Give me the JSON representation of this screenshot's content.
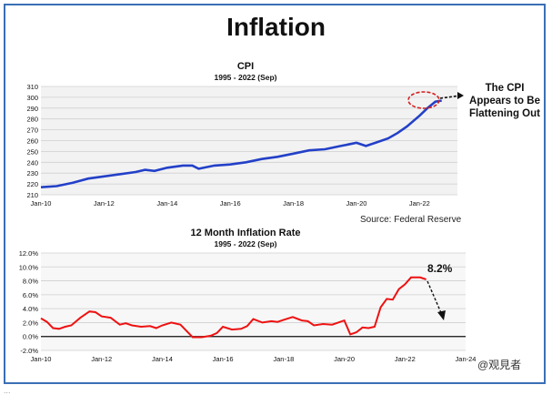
{
  "title": "Inflation",
  "source": "Source: Federal Reserve",
  "watermark": "@观見者",
  "cut_text": "...",
  "colors": {
    "cpi_line": "#2340c8",
    "rate_line": "#ee1111",
    "frame": "#3b6fb5"
  },
  "chart_data": [
    {
      "type": "line",
      "title": "CPI",
      "subtitle": "1995 - 2022 (Sep)",
      "xlim": [
        2010,
        2023.2
      ],
      "ylim": [
        210,
        310
      ],
      "yticks": [
        210,
        220,
        230,
        240,
        250,
        260,
        270,
        280,
        290,
        300,
        310
      ],
      "xticks": [
        {
          "value": 2010,
          "label": "Jan-10"
        },
        {
          "value": 2012,
          "label": "Jan-12"
        },
        {
          "value": 2014,
          "label": "Jan-14"
        },
        {
          "value": 2016,
          "label": "Jan-16"
        },
        {
          "value": 2018,
          "label": "Jan-18"
        },
        {
          "value": 2020,
          "label": "Jan-20"
        },
        {
          "value": 2022,
          "label": "Jan-22"
        }
      ],
      "grid": true,
      "annotation": "The CPI Appears to Be Flattening Out",
      "series": [
        {
          "x": [
            2010,
            2010.5,
            2011,
            2011.5,
            2012,
            2012.5,
            2013,
            2013.3,
            2013.6,
            2014,
            2014.5,
            2014.8,
            2015,
            2015.5,
            2016,
            2016.5,
            2017,
            2017.5,
            2018,
            2018.5,
            2019,
            2019.5,
            2020,
            2020.3,
            2020.6,
            2021,
            2021.3,
            2021.6,
            2022,
            2022.25,
            2022.5,
            2022.7
          ],
          "y": [
            217,
            218,
            221,
            225,
            227,
            229,
            231,
            233,
            232,
            235,
            237,
            237,
            234,
            237,
            238,
            240,
            243,
            245,
            248,
            251,
            252,
            255,
            258,
            255,
            258,
            262,
            267,
            273,
            283,
            290,
            296,
            297
          ]
        }
      ]
    },
    {
      "type": "line",
      "title": "12 Month Inflation Rate",
      "subtitle": "1995 - 2022 (Sep)",
      "xlim": [
        2010,
        2024
      ],
      "ylim": [
        -2,
        12
      ],
      "yticks": [
        -2,
        0,
        2,
        4,
        6,
        8,
        10,
        12
      ],
      "ytick_labels": [
        "-2.0%",
        "0.0%",
        "2.0%",
        "4.0%",
        "6.0%",
        "8.0%",
        "10.0%",
        "12.0%"
      ],
      "xticks": [
        {
          "value": 2010,
          "label": "Jan-10"
        },
        {
          "value": 2012,
          "label": "Jan-12"
        },
        {
          "value": 2014,
          "label": "Jan-14"
        },
        {
          "value": 2016,
          "label": "Jan-16"
        },
        {
          "value": 2018,
          "label": "Jan-18"
        },
        {
          "value": 2020,
          "label": "Jan-20"
        },
        {
          "value": 2022,
          "label": "Jan-22"
        },
        {
          "value": 2024,
          "label": "Jan-24"
        }
      ],
      "grid": true,
      "annotation": "8.2%",
      "series": [
        {
          "x": [
            2010,
            2010.2,
            2010.4,
            2010.6,
            2010.8,
            2011,
            2011.3,
            2011.6,
            2011.8,
            2012,
            2012.3,
            2012.6,
            2012.8,
            2013,
            2013.3,
            2013.6,
            2013.8,
            2014,
            2014.3,
            2014.6,
            2014.8,
            2015,
            2015.3,
            2015.6,
            2015.8,
            2016,
            2016.3,
            2016.6,
            2016.8,
            2017,
            2017.3,
            2017.6,
            2017.8,
            2018,
            2018.3,
            2018.6,
            2018.8,
            2019,
            2019.3,
            2019.6,
            2019.8,
            2020,
            2020.2,
            2020.4,
            2020.6,
            2020.8,
            2021,
            2021.2,
            2021.4,
            2021.6,
            2021.8,
            2022,
            2022.2,
            2022.5,
            2022.7
          ],
          "y": [
            2.6,
            2.1,
            1.2,
            1.1,
            1.4,
            1.6,
            2.7,
            3.6,
            3.5,
            2.9,
            2.7,
            1.7,
            1.9,
            1.6,
            1.4,
            1.5,
            1.2,
            1.6,
            2.0,
            1.7,
            0.8,
            -0.1,
            -0.1,
            0.1,
            0.5,
            1.4,
            1.0,
            1.1,
            1.5,
            2.5,
            2.0,
            2.2,
            2.1,
            2.4,
            2.8,
            2.3,
            2.2,
            1.6,
            1.8,
            1.7,
            2.0,
            2.3,
            0.3,
            0.6,
            1.3,
            1.2,
            1.4,
            4.2,
            5.4,
            5.3,
            6.8,
            7.5,
            8.5,
            8.5,
            8.2
          ]
        }
      ]
    }
  ]
}
